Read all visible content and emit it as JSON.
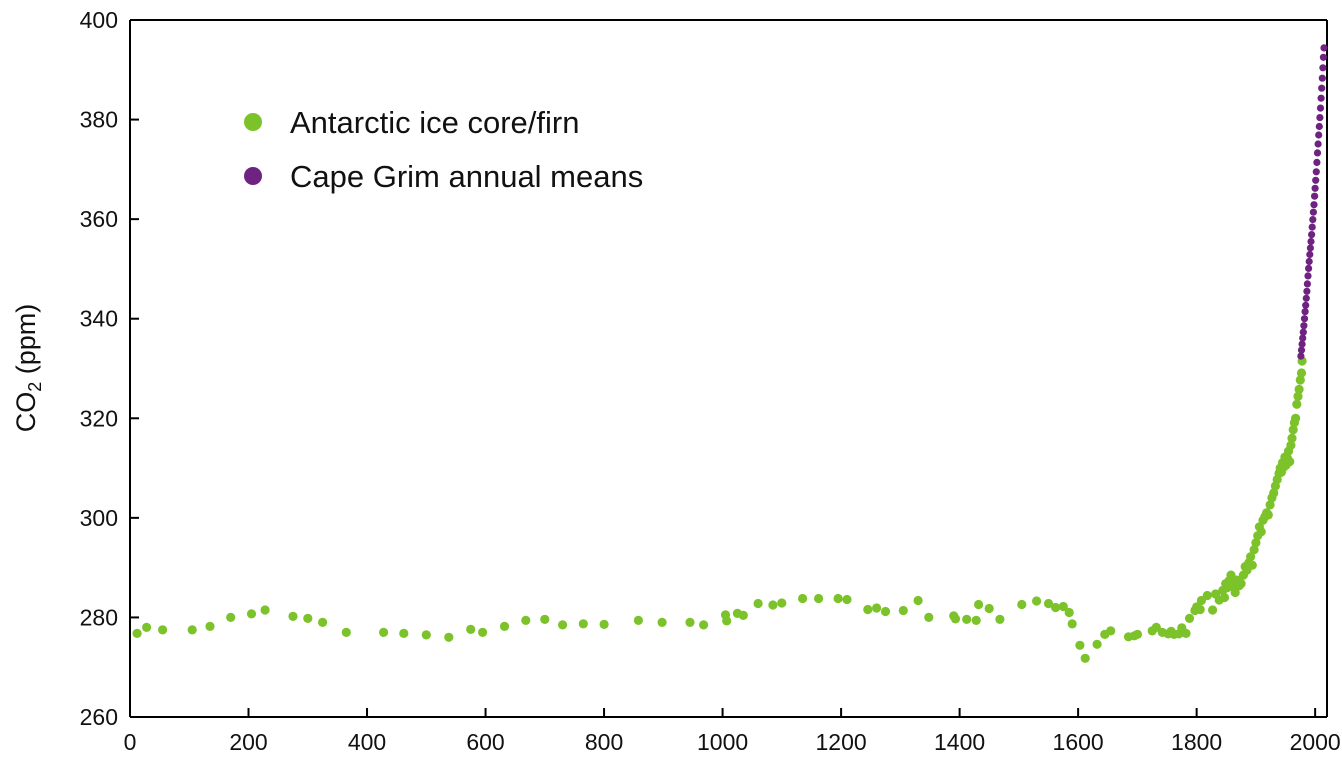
{
  "chart_data": {
    "type": "scatter",
    "title": "",
    "xlabel": "",
    "ylabel_main": "CO",
    "ylabel_sub": "2",
    "ylabel_rest": " (ppm)",
    "xlim": [
      0,
      2020
    ],
    "ylim": [
      260,
      400
    ],
    "xticks": [
      0,
      200,
      400,
      600,
      800,
      1000,
      1200,
      1400,
      1600,
      1800,
      2000
    ],
    "yticks": [
      260,
      280,
      300,
      320,
      340,
      360,
      380,
      400
    ],
    "grid": false,
    "legend_position": "top-left",
    "series": [
      {
        "name": "Antarctic ice core/firn",
        "color": "#7cc22a",
        "points": [
          [
            12,
            276.8
          ],
          [
            28,
            278.0
          ],
          [
            55,
            277.5
          ],
          [
            105,
            277.5
          ],
          [
            135,
            278.2
          ],
          [
            170,
            280.0
          ],
          [
            205,
            280.7
          ],
          [
            228,
            281.5
          ],
          [
            275,
            280.2
          ],
          [
            300,
            279.8
          ],
          [
            325,
            279.0
          ],
          [
            365,
            277.0
          ],
          [
            428,
            277.0
          ],
          [
            462,
            276.8
          ],
          [
            500,
            276.5
          ],
          [
            538,
            276.0
          ],
          [
            575,
            277.6
          ],
          [
            595,
            277.0
          ],
          [
            632,
            278.2
          ],
          [
            668,
            279.4
          ],
          [
            700,
            279.6
          ],
          [
            730,
            278.5
          ],
          [
            765,
            278.7
          ],
          [
            800,
            278.6
          ],
          [
            858,
            279.4
          ],
          [
            898,
            279.0
          ],
          [
            945,
            279.0
          ],
          [
            968,
            278.5
          ],
          [
            1005,
            280.5
          ],
          [
            1007,
            279.3
          ],
          [
            1025,
            280.8
          ],
          [
            1035,
            280.4
          ],
          [
            1060,
            282.8
          ],
          [
            1085,
            282.5
          ],
          [
            1100,
            282.9
          ],
          [
            1135,
            283.8
          ],
          [
            1162,
            283.8
          ],
          [
            1195,
            283.8
          ],
          [
            1210,
            283.6
          ],
          [
            1245,
            281.6
          ],
          [
            1260,
            281.9
          ],
          [
            1275,
            281.2
          ],
          [
            1305,
            281.4
          ],
          [
            1330,
            283.4
          ],
          [
            1348,
            280.0
          ],
          [
            1390,
            280.3
          ],
          [
            1393,
            279.7
          ],
          [
            1412,
            279.6
          ],
          [
            1428,
            279.4
          ],
          [
            1432,
            282.6
          ],
          [
            1450,
            281.8
          ],
          [
            1468,
            279.6
          ],
          [
            1505,
            282.6
          ],
          [
            1530,
            283.3
          ],
          [
            1550,
            282.8
          ],
          [
            1562,
            282.0
          ],
          [
            1575,
            282.2
          ],
          [
            1585,
            281.0
          ],
          [
            1590,
            278.7
          ],
          [
            1603,
            274.4
          ],
          [
            1612,
            271.8
          ],
          [
            1632,
            274.6
          ],
          [
            1645,
            276.6
          ],
          [
            1655,
            277.3
          ],
          [
            1685,
            276.1
          ],
          [
            1695,
            276.3
          ],
          [
            1700,
            276.6
          ],
          [
            1725,
            277.3
          ],
          [
            1732,
            278.0
          ],
          [
            1742,
            277.0
          ],
          [
            1752,
            276.7
          ],
          [
            1757,
            277.2
          ],
          [
            1762,
            276.6
          ],
          [
            1770,
            276.7
          ],
          [
            1775,
            277.9
          ],
          [
            1782,
            276.8
          ],
          [
            1788,
            279.8
          ],
          [
            1797,
            281.4
          ],
          [
            1800,
            282.1
          ],
          [
            1806,
            281.6
          ],
          [
            1808,
            283.4
          ],
          [
            1818,
            284.4
          ],
          [
            1827,
            281.5
          ],
          [
            1832,
            284.7
          ],
          [
            1838,
            283.5
          ],
          [
            1844,
            285.4
          ],
          [
            1847,
            284.0
          ],
          [
            1849,
            286.8
          ],
          [
            1852,
            286.0
          ],
          [
            1855,
            287.4
          ],
          [
            1858,
            288.5
          ],
          [
            1861,
            286.2
          ],
          [
            1865,
            285.0
          ],
          [
            1868,
            287.5
          ],
          [
            1872,
            286.4
          ],
          [
            1875,
            286.8
          ],
          [
            1879,
            288.5
          ],
          [
            1882,
            290.2
          ],
          [
            1885,
            289.5
          ],
          [
            1888,
            291.0
          ],
          [
            1891,
            292.2
          ],
          [
            1894,
            290.5
          ],
          [
            1897,
            293.6
          ],
          [
            1900,
            295.0
          ],
          [
            1903,
            296.4
          ],
          [
            1906,
            298.2
          ],
          [
            1909,
            297.2
          ],
          [
            1912,
            299.5
          ],
          [
            1915,
            300.2
          ],
          [
            1918,
            301.0
          ],
          [
            1921,
            300.6
          ],
          [
            1924,
            302.6
          ],
          [
            1927,
            304.0
          ],
          [
            1930,
            305.0
          ],
          [
            1933,
            306.4
          ],
          [
            1936,
            307.7
          ],
          [
            1939,
            308.9
          ],
          [
            1941,
            310.0
          ],
          [
            1943,
            309.2
          ],
          [
            1945,
            311.1
          ],
          [
            1947,
            310.2
          ],
          [
            1949,
            312.2
          ],
          [
            1951,
            310.6
          ],
          [
            1953,
            312.0
          ],
          [
            1955,
            313.4
          ],
          [
            1957,
            311.3
          ],
          [
            1959,
            314.6
          ],
          [
            1961,
            316.0
          ],
          [
            1963,
            317.7
          ],
          [
            1965,
            319.1
          ],
          [
            1967,
            320.0
          ],
          [
            1969,
            322.8
          ],
          [
            1971,
            324.4
          ],
          [
            1973,
            325.8
          ],
          [
            1975,
            327.7
          ],
          [
            1977,
            329.1
          ],
          [
            1978,
            331.5
          ]
        ]
      },
      {
        "name": "Cape Grim annual means",
        "color": "#6e2381",
        "points": [
          [
            1976,
            332.5
          ],
          [
            1977,
            333.7
          ],
          [
            1978,
            334.9
          ],
          [
            1979,
            336.1
          ],
          [
            1980,
            337.3
          ],
          [
            1981,
            338.6
          ],
          [
            1982,
            340.0
          ],
          [
            1983,
            341.4
          ],
          [
            1984,
            342.7
          ],
          [
            1985,
            344.1
          ],
          [
            1986,
            345.5
          ],
          [
            1987,
            347.0
          ],
          [
            1988,
            348.6
          ],
          [
            1989,
            350.1
          ],
          [
            1990,
            351.5
          ],
          [
            1991,
            352.9
          ],
          [
            1992,
            354.2
          ],
          [
            1993,
            355.5
          ],
          [
            1994,
            356.9
          ],
          [
            1995,
            358.4
          ],
          [
            1996,
            359.9
          ],
          [
            1997,
            361.4
          ],
          [
            1998,
            362.9
          ],
          [
            1999,
            364.6
          ],
          [
            2000,
            366.2
          ],
          [
            2001,
            367.8
          ],
          [
            2002,
            369.5
          ],
          [
            2003,
            371.4
          ],
          [
            2004,
            373.3
          ],
          [
            2005,
            375.1
          ],
          [
            2006,
            376.9
          ],
          [
            2007,
            378.6
          ],
          [
            2008,
            380.4
          ],
          [
            2009,
            382.3
          ],
          [
            2010,
            384.3
          ],
          [
            2011,
            386.3
          ],
          [
            2012,
            388.3
          ],
          [
            2013,
            390.4
          ],
          [
            2014,
            392.5
          ],
          [
            2015,
            394.4
          ]
        ]
      }
    ]
  }
}
